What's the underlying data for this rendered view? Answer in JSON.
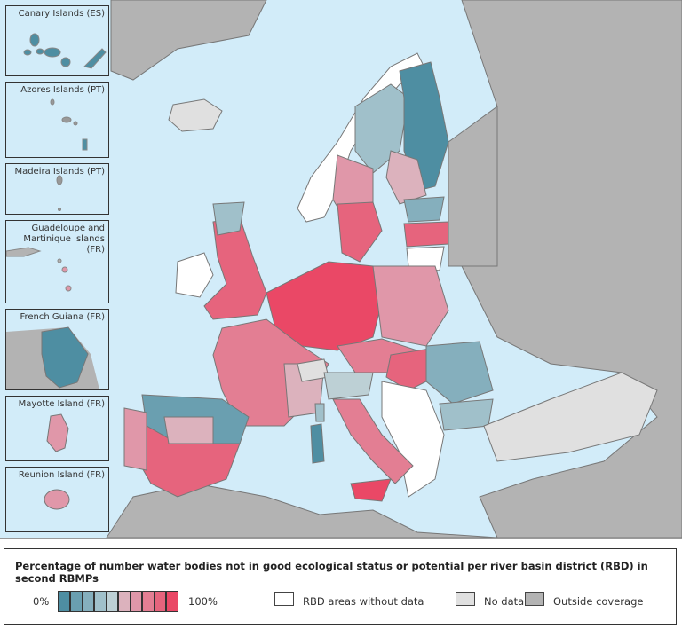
{
  "insets": [
    {
      "label": "Canary Islands (ES)"
    },
    {
      "label": "Azores Islands (PT)"
    },
    {
      "label": "Madeira Islands (PT)"
    },
    {
      "label": "Guadeloupe and Martinique Islands (FR)"
    },
    {
      "label": "French Guiana (FR)"
    },
    {
      "label": "Mayotte Island (FR)"
    },
    {
      "label": "Reunion Island (FR)"
    }
  ],
  "legend": {
    "title": "Percentage of number water bodies not in good ecological status or potential per river basin district (RBD) in second RBMPs",
    "min_label": "0%",
    "max_label": "100%",
    "scale_colors": [
      "#4e8ea2",
      "#6a9fb0",
      "#85afbd",
      "#a0c0ca",
      "#bdd0d5",
      "#dcb2bd",
      "#e097a9",
      "#e37e93",
      "#e6647d",
      "#ea4866"
    ],
    "without_data": "RBD areas without data",
    "no_data": "No data",
    "outside": "Outside coverage"
  },
  "colors": {
    "sea": "#d2ecf9",
    "outside": "#b3b3b3",
    "nodata": "#e0e0e0",
    "without": "#ffffff"
  }
}
